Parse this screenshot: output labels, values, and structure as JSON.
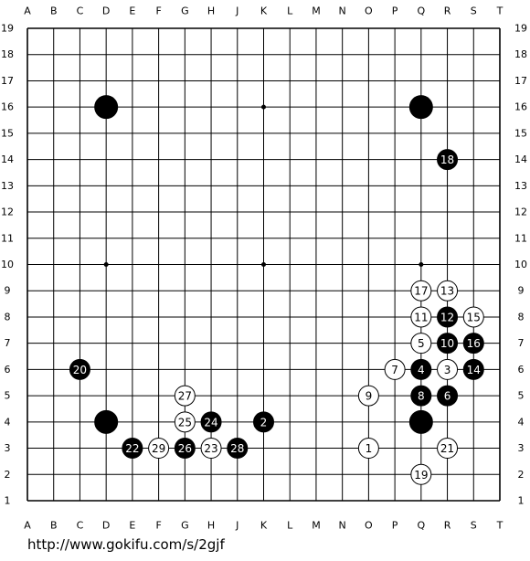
{
  "board": {
    "columns": [
      "A",
      "B",
      "C",
      "D",
      "E",
      "F",
      "G",
      "H",
      "J",
      "K",
      "L",
      "M",
      "N",
      "O",
      "P",
      "Q",
      "R",
      "S",
      "T"
    ],
    "rows": [
      19,
      18,
      17,
      16,
      15,
      14,
      13,
      12,
      11,
      10,
      9,
      8,
      7,
      6,
      5,
      4,
      3,
      2,
      1
    ],
    "stones": [
      {
        "color": "black",
        "point": "D16"
      },
      {
        "color": "black",
        "point": "Q16"
      },
      {
        "color": "black",
        "point": "D4"
      },
      {
        "color": "black",
        "point": "Q4"
      },
      {
        "color": "white",
        "point": "O3",
        "move": 1
      },
      {
        "color": "black",
        "point": "K4",
        "move": 2
      },
      {
        "color": "white",
        "point": "R6",
        "move": 3
      },
      {
        "color": "black",
        "point": "Q6",
        "move": 4
      },
      {
        "color": "white",
        "point": "Q7",
        "move": 5
      },
      {
        "color": "black",
        "point": "R5",
        "move": 6
      },
      {
        "color": "white",
        "point": "P6",
        "move": 7
      },
      {
        "color": "black",
        "point": "Q5",
        "move": 8
      },
      {
        "color": "white",
        "point": "O5",
        "move": 9
      },
      {
        "color": "black",
        "point": "R7",
        "move": 10
      },
      {
        "color": "white",
        "point": "Q8",
        "move": 11
      },
      {
        "color": "black",
        "point": "R8",
        "move": 12
      },
      {
        "color": "white",
        "point": "R9",
        "move": 13
      },
      {
        "color": "black",
        "point": "S6",
        "move": 14
      },
      {
        "color": "white",
        "point": "S8",
        "move": 15
      },
      {
        "color": "black",
        "point": "S7",
        "move": 16
      },
      {
        "color": "white",
        "point": "Q9",
        "move": 17
      },
      {
        "color": "black",
        "point": "R14",
        "move": 18
      },
      {
        "color": "white",
        "point": "Q2",
        "move": 19
      },
      {
        "color": "black",
        "point": "C6",
        "move": 20
      },
      {
        "color": "white",
        "point": "R3",
        "move": 21
      },
      {
        "color": "black",
        "point": "E3",
        "move": 22
      },
      {
        "color": "white",
        "point": "H3",
        "move": 23
      },
      {
        "color": "black",
        "point": "H4",
        "move": 24
      },
      {
        "color": "white",
        "point": "G4",
        "move": 25
      },
      {
        "color": "black",
        "point": "G3",
        "move": 26
      },
      {
        "color": "white",
        "point": "G5",
        "move": 27
      },
      {
        "color": "black",
        "point": "J3",
        "move": 28
      },
      {
        "color": "white",
        "point": "F3",
        "move": 29
      }
    ]
  },
  "footer": {
    "url": "http://www.gokifu.com/s/2gjf"
  }
}
